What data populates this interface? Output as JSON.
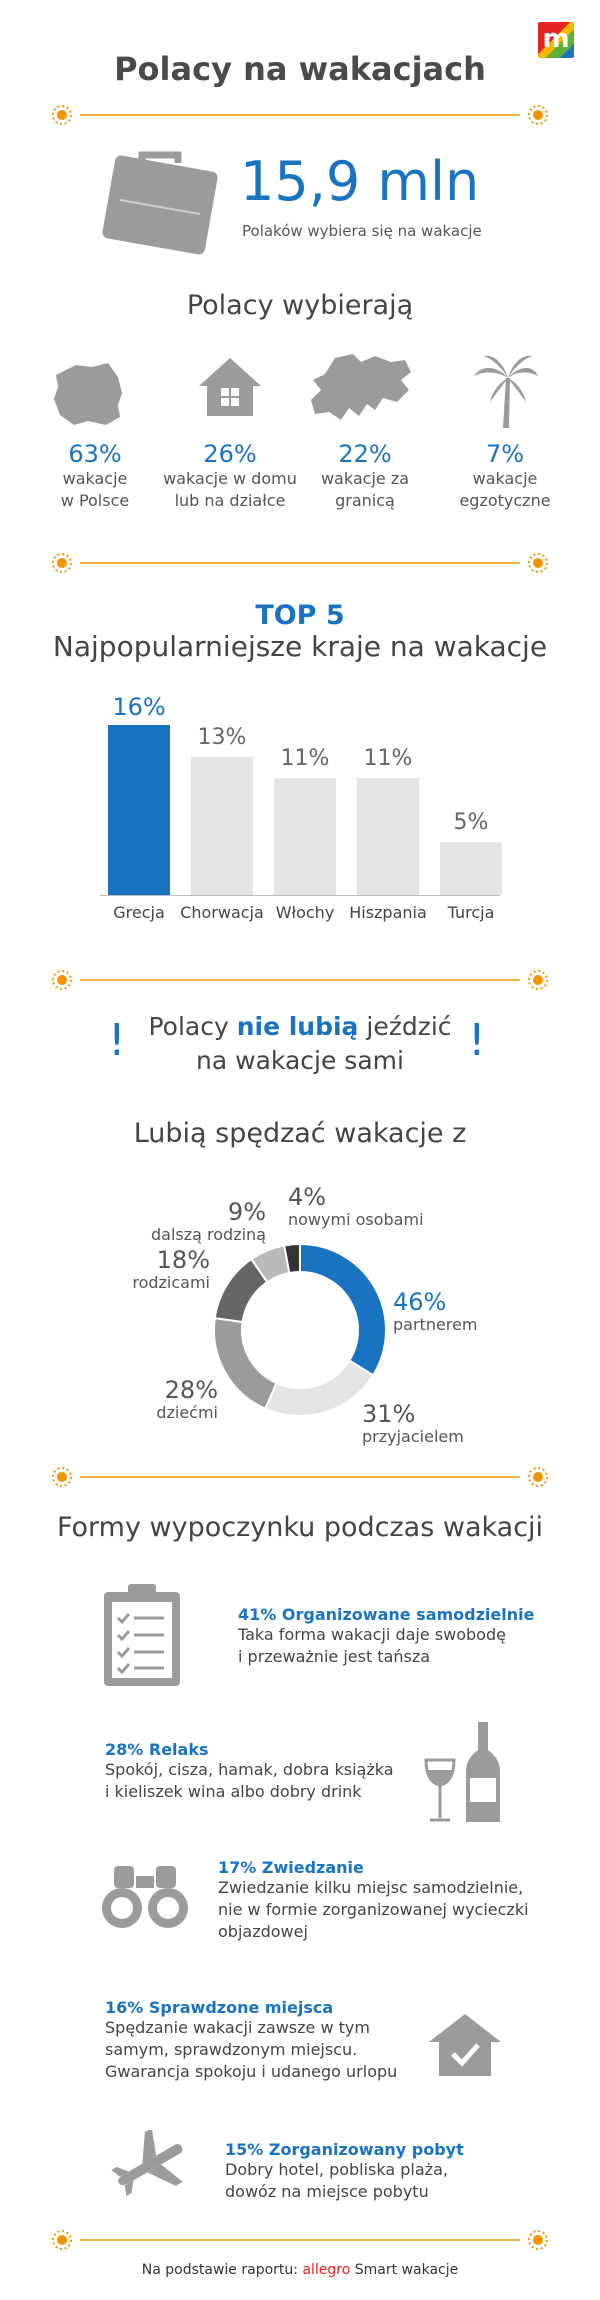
{
  "header": {
    "logo_letter": "m",
    "title": "Polacy na wakacjach"
  },
  "headline": {
    "value": "15,9 mln",
    "caption": "Polaków wybiera się na wakacje"
  },
  "choose": {
    "heading": "Polacy wybierają",
    "items": [
      {
        "pct": "63%",
        "line1": "wakacje",
        "line2": "w Polsce",
        "icon": "poland-map-icon"
      },
      {
        "pct": "26%",
        "line1": "wakacje w domu",
        "line2": "lub na działce",
        "icon": "house-icon"
      },
      {
        "pct": "22%",
        "line1": "wakacje za",
        "line2": "granicą",
        "icon": "europe-map-icon"
      },
      {
        "pct": "7%",
        "line1": "wakacje",
        "line2": "egzotyczne",
        "icon": "palm-tree-icon"
      }
    ]
  },
  "top5": {
    "title": "TOP 5",
    "subtitle": "Najpopularniejsze kraje na wakacje",
    "chart_data": {
      "type": "bar",
      "categories": [
        "Grecja",
        "Chorwacja",
        "Włochy",
        "Hiszpania",
        "Turcja"
      ],
      "values": [
        16,
        13,
        11,
        11,
        5
      ],
      "value_labels": [
        "16%",
        "13%",
        "11%",
        "11%",
        "5%"
      ],
      "highlight_index": 0,
      "highlight_color": "#1a73c1",
      "bar_color": "#e3e4e6"
    }
  },
  "alone": {
    "exclamation": "!",
    "part1": "Polacy ",
    "highlight": "nie lubią",
    "part2": " jeździć",
    "line2": "na wakacje sami"
  },
  "with_whom": {
    "heading": "Lubią spędzać wakacje z",
    "chart_data": {
      "type": "pie",
      "donut": true,
      "slices": [
        {
          "label": "partnerem",
          "value": 46,
          "text": "46%",
          "color": "#1a73c1"
        },
        {
          "label": "przyjacielem",
          "value": 31,
          "text": "31%",
          "color": "#e3e4e6"
        },
        {
          "label": "dziećmi",
          "value": 28,
          "text": "28%",
          "color": "#9b9b9b"
        },
        {
          "label": "rodzicami",
          "value": 18,
          "text": "18%",
          "color": "#666666"
        },
        {
          "label": "dalszą rodziną",
          "value": 9,
          "text": "9%",
          "color": "#b9b9b9"
        },
        {
          "label": "nowymi osobami",
          "value": 4,
          "text": "4%",
          "color": "#333333"
        }
      ]
    }
  },
  "forms": {
    "heading": "Formy wypoczynku podczas wakacji",
    "items": [
      {
        "title": "41% Organizowane samodzielnie",
        "desc": [
          "Taka forma wakacji daje swobodę",
          "i przeważnie jest tańsza"
        ],
        "icon": "clipboard-checklist-icon"
      },
      {
        "title": "28% Relaks",
        "desc": [
          "Spokój, cisza, hamak, dobra książka",
          "i kieliszek wina albo dobry drink"
        ],
        "icon": "wine-icon"
      },
      {
        "title": "17% Zwiedzanie",
        "desc": [
          "Zwiedzanie kilku miejsc samodzielnie,",
          "nie w formie zorganizowanej wycieczki",
          "objazdowej"
        ],
        "icon": "binoculars-icon"
      },
      {
        "title": "16% Sprawdzone miejsca",
        "desc": [
          "Spędzanie wakacji zawsze w tym",
          "samym, sprawdzonym miejscu.",
          "Gwarancja spokoju i udanego urlopu"
        ],
        "icon": "house-check-icon"
      },
      {
        "title": "15% Zorganizowany pobyt",
        "desc": [
          "Dobry hotel, pobliska plaża,",
          "dowóz na miejsce pobytu"
        ],
        "icon": "airplane-icon"
      }
    ]
  },
  "footer": {
    "prefix": "Na podstawie raportu: ",
    "brand": "allegro",
    "suffix": " Smart wakacje"
  },
  "colors": {
    "accent": "#1a73c1",
    "sun": "#f29400",
    "grey": "#9b9b9b"
  }
}
